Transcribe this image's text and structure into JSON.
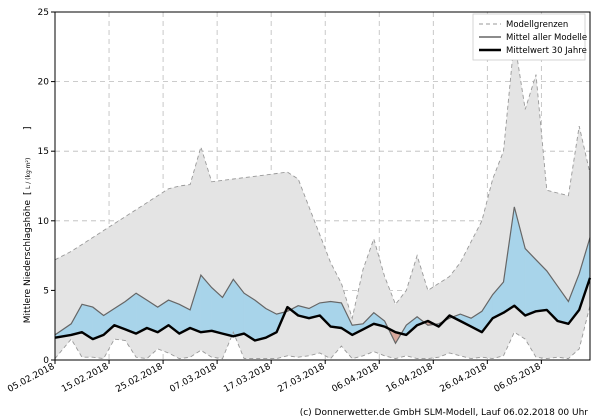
{
  "chart_data": {
    "type": "area",
    "ylabel": "Mittlere Niederschlagshöhe",
    "ylabel_unit": "L / (kg·m²)",
    "ylim": [
      0,
      25
    ],
    "yticks": [
      0,
      5,
      10,
      15,
      20,
      25
    ],
    "x_start": "2018-02-05",
    "x_end": "2018-05-15",
    "xticks": [
      "05.02.2018",
      "15.02.2018",
      "25.02.2018",
      "07.03.2018",
      "17.03.2018",
      "27.03.2018",
      "06.04.2018",
      "16.04.2018",
      "26.04.2018",
      "06.05.2018"
    ],
    "grid": true,
    "legend_position": "top-right",
    "legend": [
      {
        "label": "Modellgrenzen",
        "style": "dashed",
        "color": "#999999"
      },
      {
        "label": "Mittel aller Modelle",
        "style": "solid",
        "color": "#666666"
      },
      {
        "label": "Mittelwert 30 Jahre",
        "style": "solid-bold",
        "color": "#000000"
      }
    ],
    "colors": {
      "envelope": "#e4e4e4",
      "above_climate": "#a8d4ea",
      "below_climate": "#d9a89c"
    },
    "x": [
      "2018-02-05",
      "2018-02-08",
      "2018-02-10",
      "2018-02-12",
      "2018-02-14",
      "2018-02-16",
      "2018-02-18",
      "2018-02-20",
      "2018-02-22",
      "2018-02-24",
      "2018-02-26",
      "2018-02-28",
      "2018-03-02",
      "2018-03-04",
      "2018-03-06",
      "2018-03-08",
      "2018-03-10",
      "2018-03-12",
      "2018-03-14",
      "2018-03-16",
      "2018-03-18",
      "2018-03-20",
      "2018-03-22",
      "2018-03-24",
      "2018-03-26",
      "2018-03-28",
      "2018-03-30",
      "2018-04-01",
      "2018-04-03",
      "2018-04-05",
      "2018-04-07",
      "2018-04-09",
      "2018-04-11",
      "2018-04-13",
      "2018-04-15",
      "2018-04-17",
      "2018-04-19",
      "2018-04-21",
      "2018-04-23",
      "2018-04-25",
      "2018-04-27",
      "2018-04-29",
      "2018-05-01",
      "2018-05-03",
      "2018-05-05",
      "2018-05-07",
      "2018-05-09",
      "2018-05-11",
      "2018-05-13",
      "2018-05-15"
    ],
    "series": [
      {
        "name": "Modellgrenzen",
        "upper": [
          7.2,
          7.8,
          8.3,
          8.8,
          9.3,
          9.8,
          10.3,
          10.8,
          11.3,
          11.8,
          12.3,
          12.5,
          12.6,
          15.3,
          12.8,
          12.9,
          13.0,
          13.1,
          13.2,
          13.3,
          13.4,
          13.5,
          13.0,
          11.0,
          9.0,
          7.0,
          5.5,
          3.0,
          6.5,
          8.7,
          6.0,
          4.0,
          5.0,
          7.5,
          5.0,
          5.5,
          6.0,
          7.0,
          8.5,
          10.0,
          13.0,
          15.0,
          23.0,
          18.0,
          20.5,
          12.2,
          12.0,
          11.8,
          16.8,
          13.4
        ],
        "lower": [
          0.1,
          1.5,
          0.2,
          0.2,
          0.1,
          1.5,
          1.4,
          0.2,
          0.1,
          0.8,
          0.5,
          0.1,
          0.2,
          0.7,
          0.2,
          0.1,
          2.0,
          0.1,
          0.1,
          0.1,
          0.1,
          0.3,
          0.2,
          0.3,
          0.5,
          0.1,
          1.0,
          0.1,
          0.3,
          0.6,
          0.3,
          0.1,
          0.3,
          0.1,
          0.1,
          0.2,
          0.5,
          0.3,
          0.1,
          0.2,
          0.1,
          0.3,
          2.0,
          1.5,
          0.2,
          0.1,
          0.2,
          0.1,
          0.8,
          3.9
        ]
      },
      {
        "name": "Mittel aller Modelle",
        "values": [
          1.8,
          2.6,
          4.0,
          3.8,
          3.2,
          3.7,
          4.2,
          4.8,
          4.3,
          3.8,
          4.3,
          4.0,
          3.6,
          6.1,
          5.2,
          4.5,
          5.8,
          4.8,
          4.3,
          3.7,
          3.3,
          3.5,
          3.9,
          3.7,
          4.1,
          4.2,
          4.1,
          2.5,
          2.6,
          3.4,
          2.8,
          1.2,
          2.5,
          3.1,
          2.5,
          2.6,
          3.0,
          3.3,
          3.0,
          3.5,
          4.7,
          5.6,
          11.0,
          8.0,
          7.2,
          6.4,
          5.3,
          4.2,
          6.2,
          8.8
        ]
      },
      {
        "name": "Mittelwert 30 Jahre",
        "values": [
          1.6,
          1.8,
          2.0,
          1.5,
          1.8,
          2.5,
          2.2,
          1.9,
          2.3,
          2.0,
          2.5,
          1.9,
          2.3,
          2.0,
          2.1,
          1.9,
          1.7,
          1.9,
          1.4,
          1.6,
          2.0,
          3.8,
          3.2,
          3.0,
          3.2,
          2.4,
          2.3,
          1.8,
          2.2,
          2.6,
          2.4,
          2.0,
          1.8,
          2.5,
          2.8,
          2.4,
          3.2,
          2.8,
          2.4,
          2.0,
          3.0,
          3.4,
          3.9,
          3.2,
          3.5,
          3.6,
          2.8,
          2.6,
          3.6,
          5.9
        ]
      }
    ]
  },
  "credit": "(c) Donnerwetter.de GmbH SLM-Modell, Lauf 06.02.2018 00 Uhr"
}
